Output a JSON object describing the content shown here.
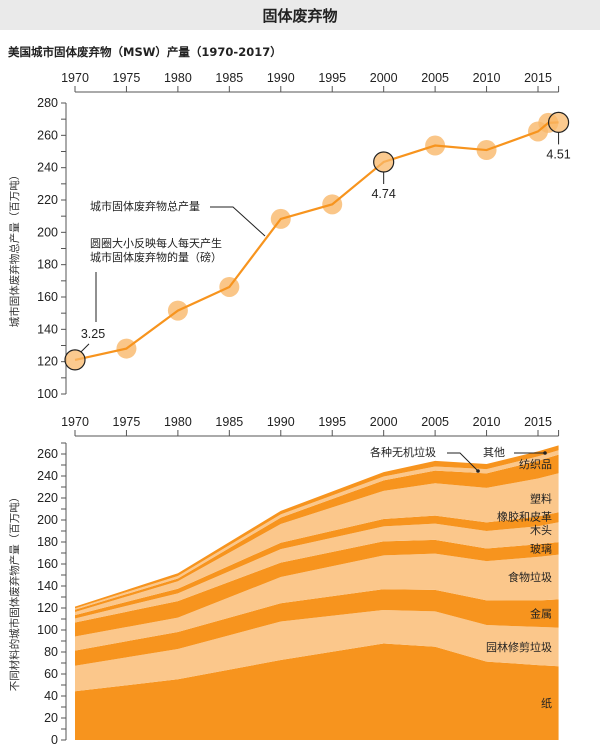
{
  "header": {
    "title": "固体废弃物"
  },
  "subtitle": "美国城市固体废弃物（MSW）产量（1970-2017）",
  "colors": {
    "dark": "#f7941e",
    "light": "#fbc78b",
    "line": "#f7941e",
    "dot": "#f9b86a",
    "ink": "#222222"
  },
  "chart_data": [
    {
      "type": "line",
      "title": "美国城市固体废弃物（MSW）产量（1970-2017）",
      "xlabel": "",
      "ylabel": "城市固体废弃物总产量（百万吨）",
      "x_ticks": [
        "1970",
        "1975",
        "1980",
        "1985",
        "1990",
        "1995",
        "2000",
        "2005",
        "2010",
        "2015"
      ],
      "xlim": [
        1970,
        2017
      ],
      "ylim": [
        100,
        280
      ],
      "y_ticks": [
        "100",
        "120",
        "140",
        "160",
        "180",
        "200",
        "220",
        "240",
        "260",
        "280"
      ],
      "x": [
        1970,
        1975,
        1980,
        1985,
        1990,
        1995,
        2000,
        2005,
        2010,
        2015,
        2016,
        2017
      ],
      "series": [
        {
          "name": "城市固体废弃物总产量",
          "values": [
            121.1,
            128.1,
            151.6,
            166.2,
            208.3,
            217.3,
            243.5,
            253.7,
            250.9,
            262.4,
            267.7,
            268.0
          ]
        }
      ],
      "highlighted_points": [
        {
          "x": 1970,
          "label": "3.25"
        },
        {
          "x": 2000,
          "label": "4.74"
        },
        {
          "x": 2017,
          "label": "4.51"
        }
      ],
      "annotations": [
        {
          "text": "城市固体废弃物总产量"
        },
        {
          "text_line1": "圆圈大小反映每人每天产生",
          "text_line2": "城市固体废弃物的量（磅）"
        }
      ]
    },
    {
      "type": "area",
      "title": "",
      "xlabel": "",
      "ylabel": "不同材料的城市固体废弃物产量（百万吨）",
      "x_ticks": [
        "1970",
        "1975",
        "1980",
        "1985",
        "1990",
        "1995",
        "2000",
        "2005",
        "2010",
        "2015"
      ],
      "xlim": [
        1970,
        2017
      ],
      "ylim": [
        0,
        270
      ],
      "y_ticks": [
        "0",
        "20",
        "40",
        "60",
        "80",
        "100",
        "120",
        "140",
        "160",
        "180",
        "200",
        "220",
        "240",
        "260"
      ],
      "x": [
        1970,
        1980,
        1990,
        2000,
        2005,
        2010,
        2015,
        2017
      ],
      "stacked": true,
      "series": [
        {
          "name": "纸",
          "shade": "dark",
          "values": [
            44.3,
            55.2,
            72.7,
            87.7,
            84.8,
            71.3,
            68.1,
            67.0
          ]
        },
        {
          "name": "园林修剪垃圾",
          "shade": "light",
          "values": [
            23.2,
            27.5,
            35.0,
            30.5,
            32.1,
            33.2,
            34.7,
            35.2
          ]
        },
        {
          "name": "金属",
          "shade": "dark",
          "values": [
            13.8,
            15.5,
            16.6,
            18.9,
            19.6,
            22.4,
            24.0,
            25.6
          ]
        },
        {
          "name": "食物垃圾",
          "shade": "light",
          "values": [
            12.8,
            13.0,
            23.9,
            30.7,
            32.9,
            35.7,
            39.7,
            40.7
          ]
        },
        {
          "name": "玻璃",
          "shade": "dark",
          "values": [
            12.7,
            15.1,
            13.1,
            12.8,
            12.5,
            11.5,
            11.5,
            11.4
          ]
        },
        {
          "name": "木头",
          "shade": "light",
          "values": [
            3.7,
            7.0,
            12.2,
            13.6,
            14.8,
            15.9,
            16.3,
            18.0
          ]
        },
        {
          "name": "橡胶和皮革",
          "shade": "dark",
          "values": [
            3.0,
            4.2,
            5.8,
            6.7,
            7.3,
            7.8,
            8.9,
            9.2
          ]
        },
        {
          "name": "塑料",
          "shade": "light",
          "values": [
            2.9,
            6.8,
            17.1,
            25.6,
            29.4,
            31.4,
            34.5,
            35.4
          ]
        },
        {
          "name": "纺织品",
          "shade": "dark",
          "values": [
            2.0,
            2.5,
            5.8,
            9.5,
            11.5,
            13.2,
            16.0,
            16.9
          ]
        },
        {
          "name": "各种无机垃圾",
          "shade": "light",
          "values": [
            1.3,
            2.3,
            2.9,
            3.5,
            3.7,
            3.8,
            4.1,
            4.0
          ]
        },
        {
          "name": "其他",
          "shade": "dark",
          "values": [
            1.5,
            2.5,
            3.2,
            4.0,
            5.1,
            4.7,
            4.6,
            4.4
          ]
        }
      ]
    }
  ]
}
